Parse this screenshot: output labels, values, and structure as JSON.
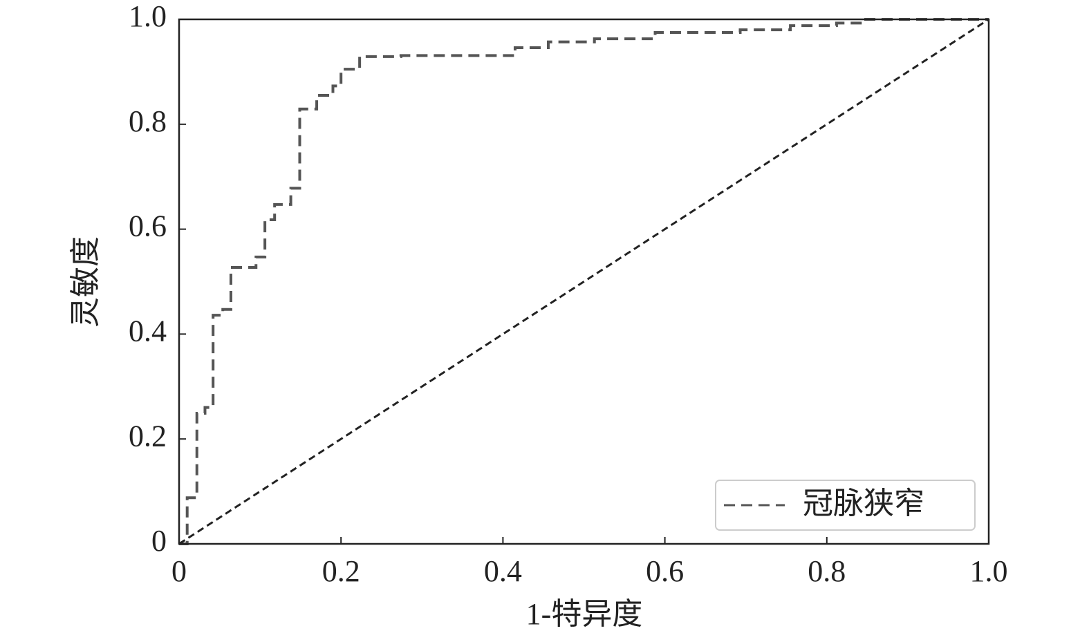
{
  "chart_data": {
    "type": "line",
    "xlabel": "1-特异度",
    "ylabel": "灵敏度",
    "xlim": [
      0,
      1
    ],
    "ylim": [
      0,
      1
    ],
    "xticks": [
      0,
      0.2,
      0.4,
      0.6,
      0.8,
      {
        "value": 1,
        "label": "1.0"
      }
    ],
    "yticks": [
      0,
      0.2,
      0.4,
      0.6,
      0.8,
      {
        "value": 1,
        "label": "1.0"
      }
    ],
    "legend": "lower right",
    "series": [
      {
        "name": "冠脉狭窄",
        "color": "#555555",
        "x": [
          0,
          0.01,
          0.01,
          0.022,
          0.022,
          0.032,
          0.032,
          0.042,
          0.042,
          0.054,
          0.054,
          0.064,
          0.064,
          0.095,
          0.095,
          0.106,
          0.106,
          0.118,
          0.118,
          0.138,
          0.138,
          0.149,
          0.149,
          0.17,
          0.17,
          0.19,
          0.19,
          0.2,
          0.2,
          0.223,
          0.223,
          0.274,
          0.274,
          0.415,
          0.415,
          0.456,
          0.456,
          0.513,
          0.513,
          0.588,
          0.588,
          0.693,
          0.693,
          0.755,
          0.755,
          0.812,
          0.812,
          0.844,
          0.844,
          1
        ],
        "values": [
          0,
          0,
          0.088,
          0.088,
          0.249,
          0.249,
          0.26,
          0.26,
          0.436,
          0.436,
          0.447,
          0.447,
          0.527,
          0.527,
          0.547,
          0.547,
          0.618,
          0.618,
          0.647,
          0.647,
          0.678,
          0.678,
          0.829,
          0.829,
          0.855,
          0.855,
          0.873,
          0.873,
          0.905,
          0.905,
          0.929,
          0.929,
          0.931,
          0.931,
          0.946,
          0.946,
          0.957,
          0.957,
          0.963,
          0.963,
          0.975,
          0.975,
          0.98,
          0.98,
          0.988,
          0.988,
          0.993,
          0.993,
          1,
          1
        ]
      },
      {
        "color": "#222222",
        "x": [
          0,
          1
        ],
        "values": [
          0,
          1
        ]
      }
    ]
  }
}
